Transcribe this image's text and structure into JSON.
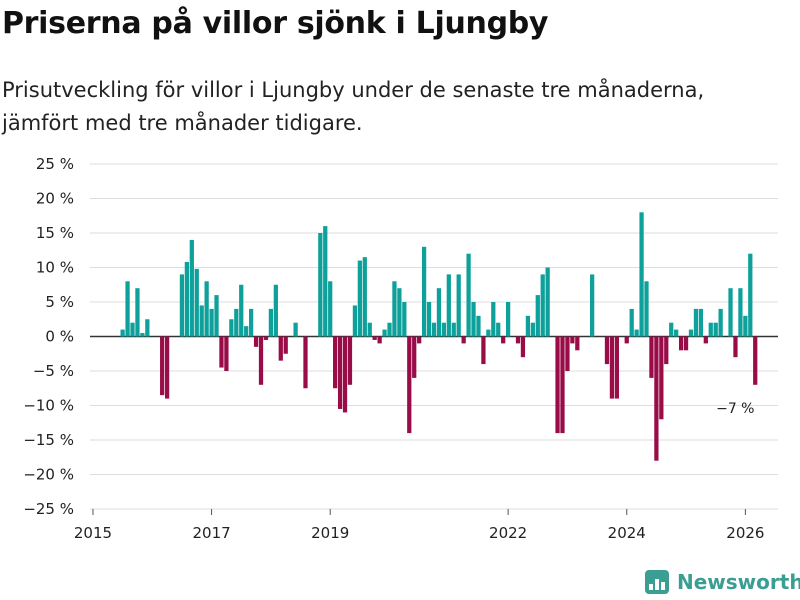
{
  "title": "Priserna på villor sjönk i Ljungby",
  "subtitle": "Prisutveckling för villor i Ljungby under de senaste tre månaderna, jämfört med tre månader tidigare.",
  "colors": {
    "positive": "#0ea09a",
    "negative": "#9a0c47",
    "axis": "#333333",
    "grid": "#dddddd",
    "brand": "#3b9e93"
  },
  "brand": "Newsworthy",
  "chart_data": {
    "type": "bar",
    "x_start": 2015.5,
    "x_step": 0.08333,
    "values": [
      1,
      8,
      2,
      7,
      0.5,
      2.5,
      0,
      0,
      -8.5,
      -9,
      0,
      0,
      9,
      10.8,
      14,
      9.8,
      4.5,
      8,
      4,
      6,
      -4.5,
      -5,
      2.5,
      4,
      7.5,
      1.5,
      4,
      -1.5,
      -7,
      -0.5,
      4,
      7.5,
      -3.5,
      -2.5,
      0,
      2,
      0,
      -7.5,
      0,
      0,
      15,
      16,
      8,
      -7.5,
      -10.5,
      -11,
      -7,
      4.5,
      11,
      11.5,
      2,
      -0.5,
      -1,
      1,
      2,
      8,
      7,
      5,
      -14,
      -6,
      -1,
      13,
      5,
      2,
      7,
      2,
      9,
      2,
      9,
      -1,
      12,
      5,
      3,
      -4,
      1,
      5,
      2,
      -1,
      5,
      0,
      -1,
      -3,
      3,
      2,
      6,
      9,
      10,
      0,
      -14,
      -14,
      -5,
      -1,
      -2,
      0,
      0,
      9,
      0,
      0,
      -4,
      -9,
      -9,
      0,
      -1,
      4,
      1,
      18,
      8,
      -6,
      -18,
      -12,
      -4,
      2,
      1,
      -2,
      -2,
      1,
      4,
      4,
      -1,
      2,
      2,
      4,
      0,
      7,
      -3,
      7,
      3,
      12,
      -7
    ],
    "ylim": [
      -25,
      25
    ],
    "yticks": [
      25,
      20,
      15,
      10,
      5,
      0,
      -5,
      -10,
      -15,
      -20,
      -25
    ],
    "ytick_labels": [
      "25 %",
      "20 %",
      "15 %",
      "10 %",
      "5 %",
      "0 %",
      "−5 %",
      "−10 %",
      "−15 %",
      "−20 %",
      "−25 %"
    ],
    "xticks": [
      2015,
      2017,
      2019,
      2022,
      2024,
      2026
    ],
    "xtick_labels": [
      "2015",
      "2017",
      "2019",
      "2022",
      "2024",
      "2026"
    ],
    "annotation": {
      "text": "−7 %",
      "x": 2025.83,
      "value": -7
    }
  }
}
